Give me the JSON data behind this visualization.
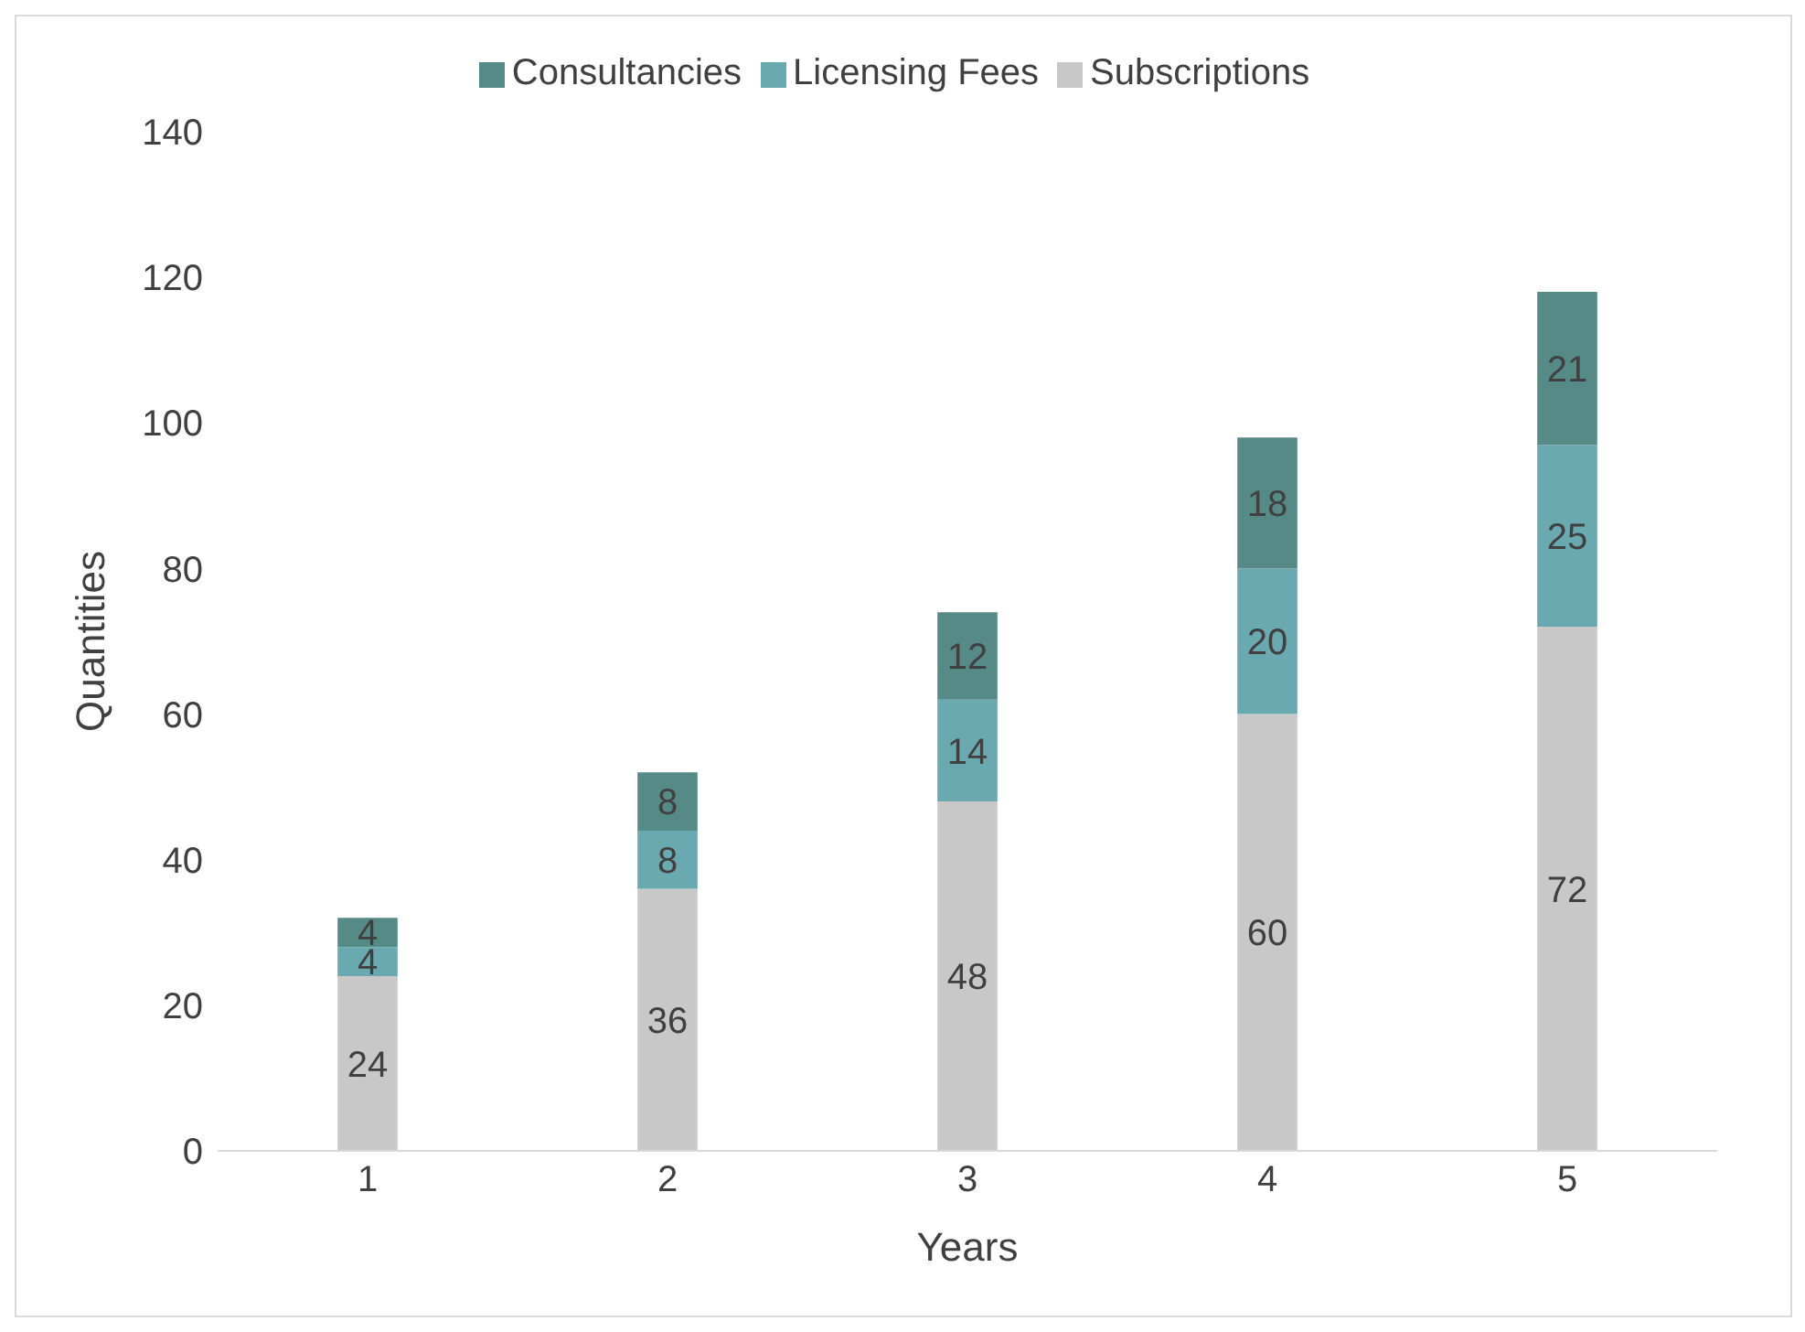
{
  "chart_data": {
    "type": "bar",
    "stacked": true,
    "xlabel": "Years",
    "ylabel": "Quantities",
    "categories": [
      "1",
      "2",
      "3",
      "4",
      "5"
    ],
    "series": [
      {
        "name": "Subscriptions",
        "color": "#c8c8c8",
        "values": [
          24,
          36,
          48,
          60,
          72
        ]
      },
      {
        "name": "Licensing Fees",
        "color": "#6aa9b0",
        "values": [
          4,
          8,
          14,
          20,
          25
        ]
      },
      {
        "name": "Consultancies",
        "color": "#568a87",
        "values": [
          4,
          8,
          12,
          18,
          21
        ]
      }
    ],
    "ylim": [
      0,
      140
    ],
    "yticks": [
      0,
      20,
      40,
      60,
      80,
      100,
      120,
      140
    ],
    "grid": false,
    "legend": "top",
    "data_labels": true
  }
}
